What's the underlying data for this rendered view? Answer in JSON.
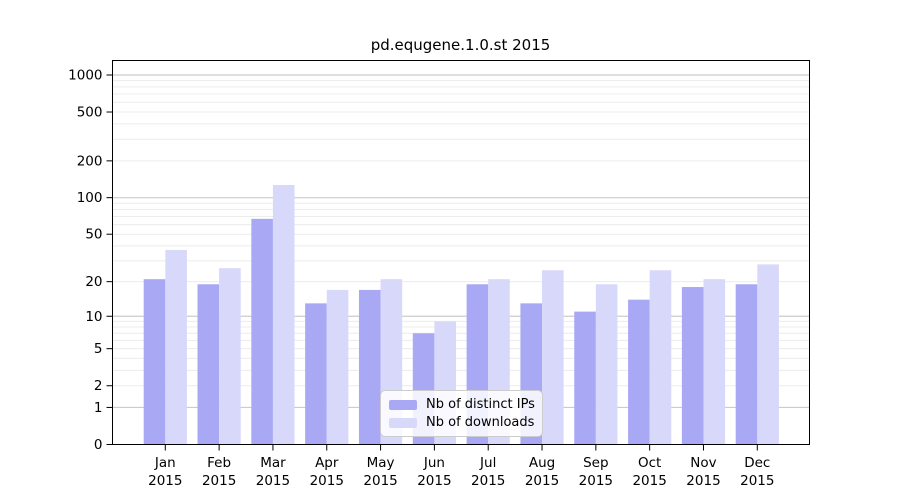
{
  "chart_data": {
    "type": "bar",
    "title": "pd.equgene.1.0.st 2015",
    "categories": [
      "Jan",
      "Feb",
      "Mar",
      "Apr",
      "May",
      "Jun",
      "Jul",
      "Aug",
      "Sep",
      "Oct",
      "Nov",
      "Dec"
    ],
    "category_year": "2015",
    "series": [
      {
        "name": "Nb of distinct IPs",
        "color": "#a8a8f5",
        "values": [
          21,
          19,
          67,
          13,
          17,
          7,
          19,
          13,
          11,
          14,
          18,
          19
        ]
      },
      {
        "name": "Nb of downloads",
        "color": "#d8d8fa",
        "values": [
          37,
          26,
          127,
          17,
          21,
          9,
          21,
          25,
          19,
          25,
          21,
          28
        ]
      }
    ],
    "yticks": [
      0,
      1,
      2,
      5,
      10,
      20,
      50,
      100,
      200,
      500,
      1000
    ],
    "yscale": "log10(1+y)",
    "ylim": [
      0,
      1000
    ],
    "xlabel": "",
    "ylabel": "",
    "grid": true,
    "grid_color_major": "#cccccc",
    "grid_color_minor": "#ececec",
    "axis_color": "#000000",
    "legend_position": "inside bottom-center"
  }
}
